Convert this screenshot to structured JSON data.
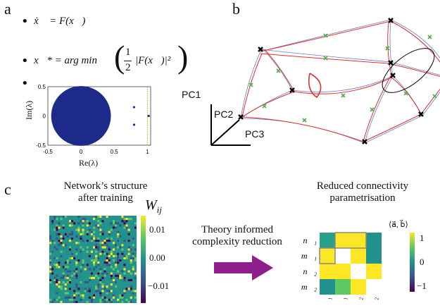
{
  "panels": {
    "a": "a",
    "b": "b",
    "c": "c"
  },
  "panel_a": {
    "eq1": "ẋ⃗ = F(x⃗)",
    "eq2_left": "x⃗* = arg min",
    "eq2_frac_num": "1",
    "eq2_frac_den": "2",
    "eq2_right": "|F(x⃗)|²",
    "bullet": "•"
  },
  "panel_b": {
    "pc1": "PC1",
    "pc2": "PC2",
    "pc3": "PC3"
  },
  "panel_c": {
    "left_title_1": "Network’s structure",
    "left_title_2": "after training",
    "arrow_text_1": "Theory informed",
    "arrow_text_2": "complexity reduction",
    "right_title_1": "Reduced connectivity",
    "right_title_2": "parametrisation",
    "left_cbar_label": "W",
    "left_cbar_label_sub": "ij",
    "left_cbar_ticks": [
      "0.01",
      "0.00",
      "−0.01"
    ],
    "right_cbar_label": "⟨a⃗, b⃗⟩",
    "right_cbar_ticks": [
      "1",
      "0",
      "−1"
    ],
    "matrix_row_labels": [
      "n⃗₁",
      "m⃗₁",
      "n⃗₂",
      "m⃗₂"
    ],
    "matrix_col_labels": [
      "n⃗₁",
      "m⃗₁",
      "n⃗₂",
      "m⃗₂"
    ]
  },
  "chart_data": {
    "type": "scatter",
    "xlabel": "Re(λ)",
    "ylabel": "Im(λ)",
    "xticks": [
      "-0.5",
      "0",
      "0.5",
      "1"
    ],
    "yticks": [
      "0.5",
      "0",
      "-0.5"
    ],
    "xlim": [
      -0.5,
      1.05
    ],
    "ylim": [
      -0.5,
      0.5
    ],
    "bulk": {
      "shape": "disk",
      "center": [
        0,
        0
      ],
      "radius": 0.45,
      "color": "#1e2a8a"
    },
    "outliers": [
      {
        "x": 0.8,
        "y": 0.15
      },
      {
        "x": 0.8,
        "y": -0.15
      },
      {
        "x": 1.02,
        "y": 0.0
      }
    ],
    "vertical_line_x": 1.0
  },
  "matrix": {
    "values": [
      [
        0.2,
        0.9,
        0.9,
        0.3
      ],
      [
        0.9,
        0.0,
        0.9,
        0.35
      ],
      [
        0.9,
        0.9,
        0.0,
        0.9
      ],
      [
        0.3,
        0.45,
        0.9,
        0.0
      ]
    ]
  },
  "colors": {
    "viridis_dark": "#440154",
    "viridis_mid": "#21918c",
    "viridis_yellow": "#fde725",
    "arrow": "#8e1f8c",
    "traj_red": "#e0302b",
    "traj_blue": "#6b7bc4",
    "cross_green": "#4caf50"
  }
}
